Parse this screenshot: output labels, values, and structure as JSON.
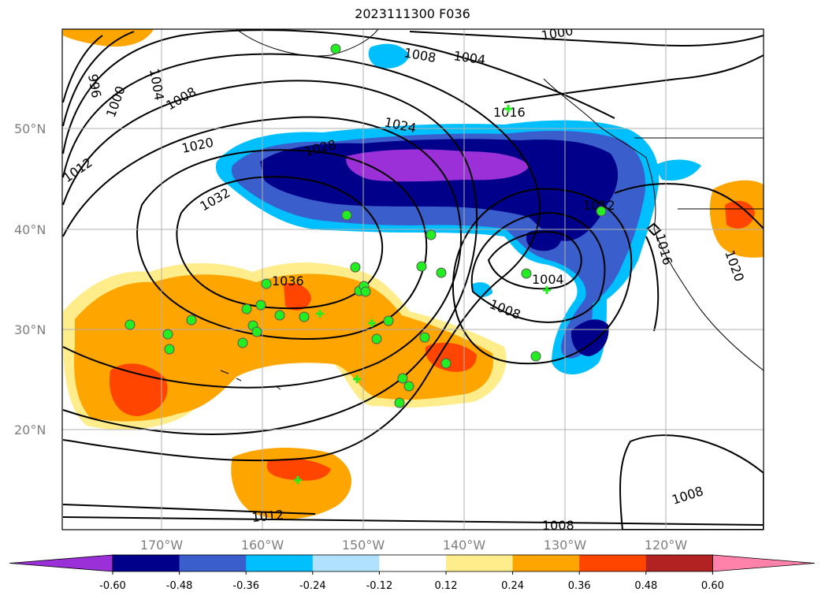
{
  "title": "2023111300 F036",
  "lat_labels": [
    "50°N",
    "40°N",
    "30°N",
    "20°N"
  ],
  "lon_labels": [
    "170°W",
    "160°W",
    "150°W",
    "140°W",
    "130°W",
    "120°W"
  ],
  "contour_labels": [
    "1000",
    "1004",
    "1008",
    "1012",
    "1016",
    "1020",
    "1024",
    "1028",
    "1032",
    "1036",
    "996"
  ],
  "colorbar": {
    "colors": [
      "#9b30d9",
      "#00008b",
      "#3a5fcd",
      "#00bfff",
      "#b0e2ff",
      "#ffffff",
      "#ffec8b",
      "#ffa500",
      "#ff4500",
      "#b22222",
      "#ff82ab"
    ],
    "ticks": [
      "-0.60",
      "-0.48",
      "-0.36",
      "-0.24",
      "-0.12",
      "0.12",
      "0.24",
      "0.36",
      "0.48",
      "0.60"
    ]
  },
  "colors": {
    "positive_fill": "#ffa500",
    "negative_fill": "#00bfff",
    "station_marker": "#22ee22",
    "isobar": "#000000"
  }
}
